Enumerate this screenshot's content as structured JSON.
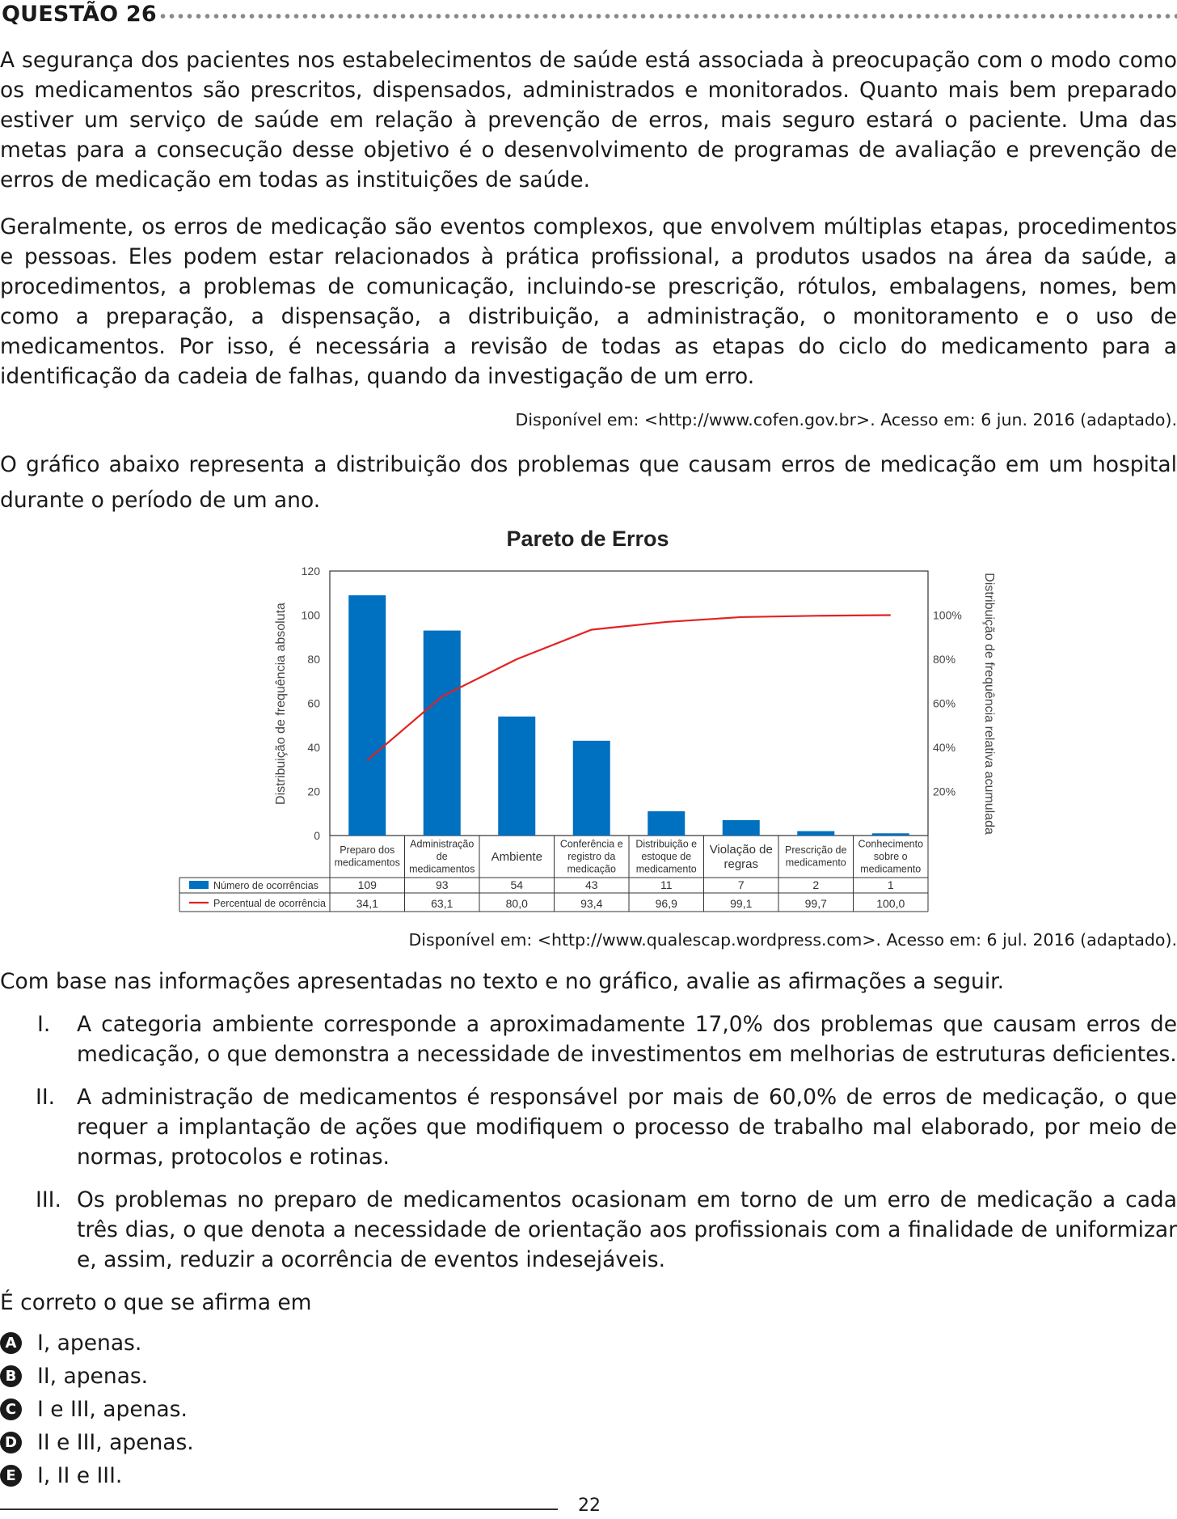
{
  "question": {
    "title": "QUESTÃO 26"
  },
  "text": {
    "p1": "A segurança dos pacientes nos estabelecimentos de saúde está associada à preocupação com o modo como os medicamentos são prescritos, dispensados, administrados e monitorados. Quanto mais bem preparado estiver um serviço de saúde em relação à prevenção de erros, mais seguro estará o paciente. Uma das metas para a consecução desse objetivo é o desenvolvimento de programas de avaliação e prevenção de erros de medicação em todas as instituições de saúde.",
    "p2": "Geralmente, os erros de medicação são eventos complexos, que envolvem múltiplas etapas, procedimentos e pessoas. Eles podem estar relacionados à prática profissional, a produtos usados na área da saúde, a procedimentos, a problemas de comunicação, incluindo-se prescrição, rótulos, embalagens, nomes, bem como a preparação, a dispensação, a distribuição, a administração, o monitoramento e o uso de medicamentos. Por isso, é necessária a revisão de todas as etapas do ciclo do medicamento para a identificação da cadeia de falhas, quando da investigação de um erro.",
    "source1": "Disponível em: <http://www.cofen.gov.br>. Acesso em: 6 jun. 2016 (adaptado).",
    "p3": "O gráfico abaixo representa a distribuição dos problemas que causam erros de medicação em um hospital durante o período de um ano.",
    "source2": "Disponível em: <http://www.qualescap.wordpress.com>. Acesso em: 6 jul. 2016 (adaptado).",
    "p4": "Com base nas informações apresentadas no texto e no gráfico, avalie as afirmações a seguir.",
    "prompt": "É correto o que se afirma em"
  },
  "statements": [
    {
      "num": "I.",
      "text": "A categoria ambiente corresponde a aproximadamente 17,0% dos problemas que causam erros de medicação, o que demonstra a necessidade de investimentos em melhorias de estruturas deficientes."
    },
    {
      "num": "II.",
      "text": "A administração de medicamentos é responsável por mais de 60,0% de erros de medicação, o que requer a implantação de ações que modifiquem o processo de trabalho mal elaborado, por meio de normas, protocolos e rotinas."
    },
    {
      "num": "III.",
      "text": "Os problemas no preparo de medicamentos ocasionam em torno de um erro de medicação a cada três dias, o que denota a necessidade de orientação aos profissionais com a finalidade de uniformizar e, assim, reduzir a ocorrência de eventos indesejáveis."
    }
  ],
  "options": [
    {
      "letter": "A",
      "text": "I, apenas."
    },
    {
      "letter": "B",
      "text": "II, apenas."
    },
    {
      "letter": "C",
      "text": "I e III, apenas."
    },
    {
      "letter": "D",
      "text": "II e III, apenas."
    },
    {
      "letter": "E",
      "text": "I, II e III."
    }
  ],
  "page": {
    "number": "22"
  },
  "chart_data": {
    "type": "bar",
    "title": "Pareto de Erros",
    "ylabel": "Distribuição de frequência absoluta",
    "y2label": "Distribuição de frequência relativa acumulada",
    "ylim": [
      0,
      120
    ],
    "yticks": [
      "0",
      "20",
      "40",
      "60",
      "80",
      "100",
      "120"
    ],
    "y2ticks": [
      "20%",
      "40%",
      "60%",
      "80%",
      "100%"
    ],
    "categories": [
      [
        "Preparo dos",
        "medicamentos"
      ],
      [
        "Administração",
        "de",
        "medicamentos"
      ],
      [
        "Ambiente"
      ],
      [
        "Conferência e",
        "registro da",
        "medicação"
      ],
      [
        "Distribuição e",
        "estoque de",
        "medicamento"
      ],
      [
        "Violação de",
        "regras"
      ],
      [
        "Prescrição de",
        "medicamento"
      ],
      [
        "Conhecimento",
        "sobre o",
        "medicamento"
      ]
    ],
    "series": [
      {
        "name": "Número de ocorrências",
        "type": "bar",
        "color": "#0070c0",
        "values": [
          109,
          93,
          54,
          43,
          11,
          7,
          2,
          1
        ],
        "labels": [
          "109",
          "93",
          "54",
          "43",
          "11",
          "7",
          "2",
          "1"
        ]
      },
      {
        "name": "Percentual de ocorrência",
        "type": "line",
        "color": "#e32222",
        "values": [
          34.1,
          63.1,
          80.0,
          93.4,
          96.9,
          99.1,
          99.7,
          100.0
        ],
        "labels": [
          "34,1",
          "63,1",
          "80,0",
          "93,4",
          "96,9",
          "99,1",
          "99,7",
          "100,0"
        ]
      }
    ],
    "legend": "table-below",
    "grid": false
  }
}
